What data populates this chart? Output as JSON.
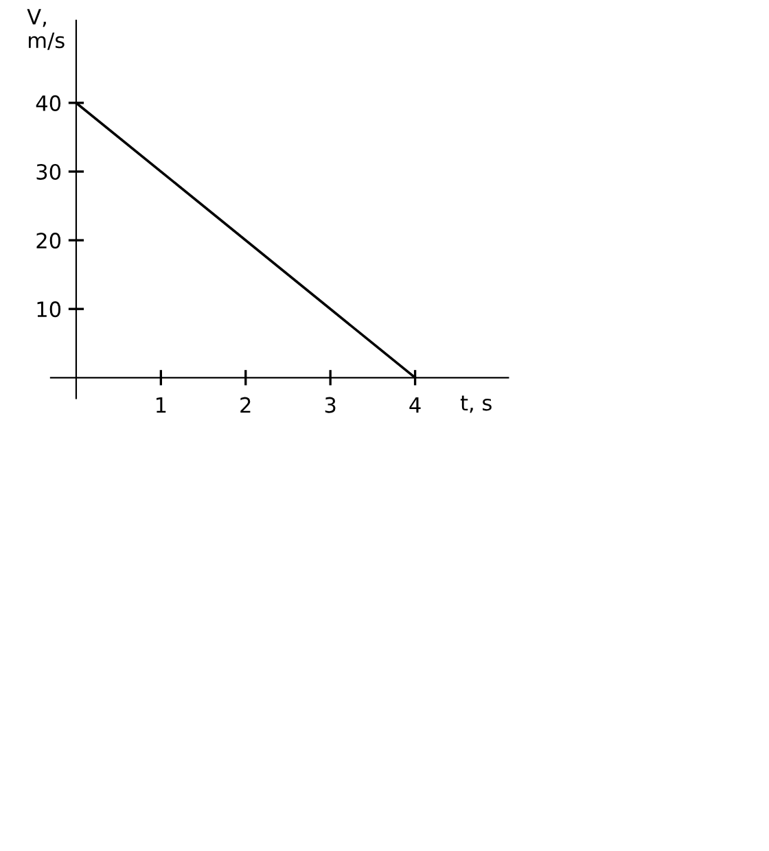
{
  "chart_data": {
    "type": "line",
    "xlabel": "t, s",
    "ylabel": "V,\nm/s",
    "x": [
      0,
      4
    ],
    "values": [
      40,
      0
    ],
    "color": "#000000",
    "xlim": [
      -0.3,
      5.1
    ],
    "ylim": [
      -3,
      52
    ],
    "xticks": [
      1,
      2,
      3,
      4
    ],
    "yticks": [
      10,
      20,
      30,
      40
    ],
    "grid": false,
    "marker": "none",
    "line_style": "solid"
  }
}
